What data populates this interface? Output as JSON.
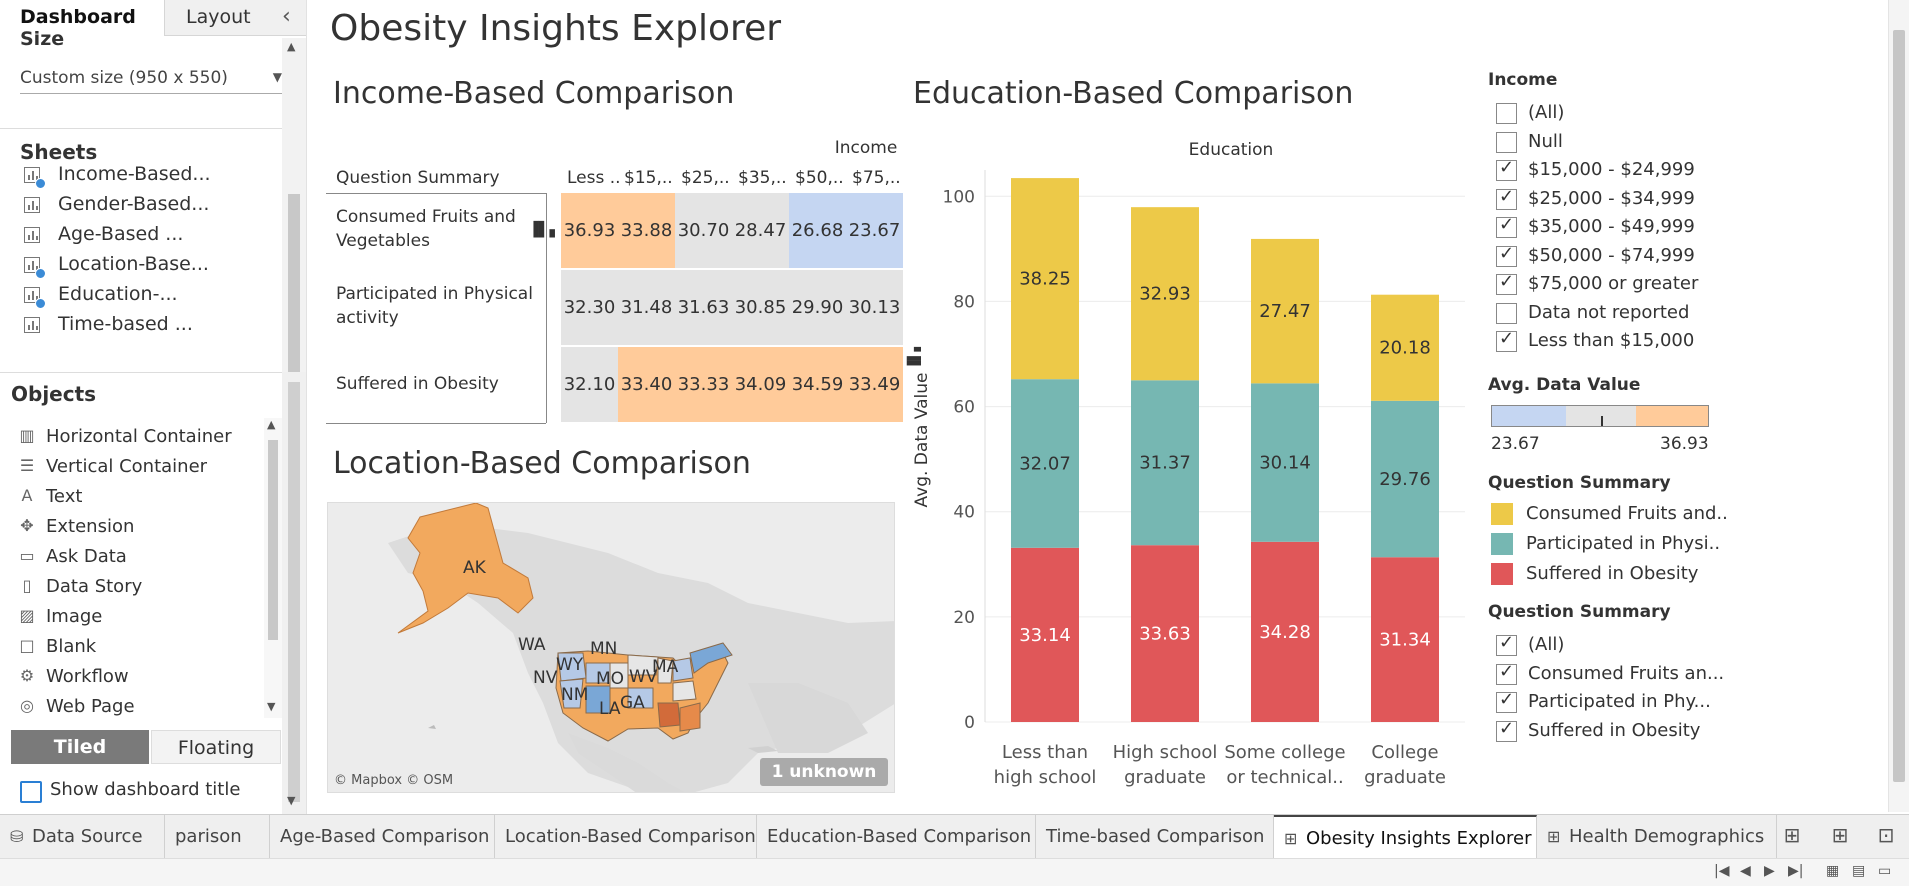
{
  "left_panel": {
    "tabs": {
      "dashboard": "Dashboard",
      "layout": "Layout"
    },
    "size": {
      "heading": "Size",
      "value": "Custom size (950 x 550)"
    },
    "sheets": {
      "heading": "Sheets",
      "items": [
        {
          "label": "Income-Based...",
          "used": true
        },
        {
          "label": "Gender-Based...",
          "used": false
        },
        {
          "label": "Age-Based ...",
          "used": false
        },
        {
          "label": "Location-Base...",
          "used": true
        },
        {
          "label": "Education-...",
          "used": true
        },
        {
          "label": "Time-based ...",
          "used": false
        }
      ]
    },
    "objects": {
      "heading": "Objects",
      "items": [
        {
          "label": "Horizontal Container",
          "icon": "horizontal-container-icon"
        },
        {
          "label": "Vertical Container",
          "icon": "vertical-container-icon"
        },
        {
          "label": "Text",
          "icon": "text-icon"
        },
        {
          "label": "Extension",
          "icon": "extension-icon"
        },
        {
          "label": "Ask Data",
          "icon": "ask-data-icon"
        },
        {
          "label": "Data Story",
          "icon": "data-story-icon"
        },
        {
          "label": "Image",
          "icon": "image-icon"
        },
        {
          "label": "Blank",
          "icon": "blank-icon"
        },
        {
          "label": "Workflow",
          "icon": "workflow-icon"
        },
        {
          "label": "Web Page",
          "icon": "web-page-icon"
        }
      ]
    },
    "tiled": "Tiled",
    "floating": "Floating",
    "show_title": "Show dashboard title"
  },
  "dashboard": {
    "title": "Obesity Insights Explorer",
    "income_block": {
      "title": "Income-Based Comparison",
      "column_header": "Income",
      "row_header": "Question Summary",
      "columns": [
        "Less ..",
        "$15,..",
        "$25,..",
        "$35,..",
        "$50,..",
        "$75,.."
      ],
      "rows": [
        {
          "label": "Consumed Fruits and Vegetables",
          "values": [
            "36.93",
            "33.88",
            "30.70",
            "28.47",
            "26.68",
            "23.67"
          ],
          "colors": [
            "#ffcb9a",
            "#ffcb9a",
            "#e4e4e4",
            "#e4e4e4",
            "#c5d6f2",
            "#c5d6f2"
          ]
        },
        {
          "label": "Participated in Physical activity",
          "values": [
            "32.30",
            "31.48",
            "31.63",
            "30.85",
            "29.90",
            "30.13"
          ],
          "colors": [
            "#e4e4e4",
            "#e4e4e4",
            "#e4e4e4",
            "#e4e4e4",
            "#e4e4e4",
            "#e4e4e4"
          ]
        },
        {
          "label": "Suffered in Obesity",
          "values": [
            "32.10",
            "33.40",
            "33.33",
            "34.09",
            "34.59",
            "33.49"
          ],
          "colors": [
            "#e4e4e4",
            "#ffcb9a",
            "#ffcb9a",
            "#ffcb9a",
            "#ffcb9a",
            "#ffcb9a"
          ]
        }
      ]
    },
    "location_block": {
      "title": "Location-Based Comparison",
      "state_labels": [
        "AK",
        "WA",
        "WY",
        "MN",
        "NV",
        "MO",
        "WV",
        "MA",
        "NM",
        "LA",
        "GA"
      ],
      "attribution": "© Mapbox © OSM",
      "unknown": "1 unknown"
    },
    "education_block": {
      "title": "Education-Based Comparison"
    }
  },
  "chart_data": {
    "type": "bar",
    "stacked": true,
    "title": "Education",
    "xlabel": "",
    "ylabel": "Avg. Data Value",
    "categories": [
      "Less than high school",
      "High school graduate",
      "Some college or technical..",
      "College graduate"
    ],
    "category_lines": [
      [
        "Less than",
        "high school"
      ],
      [
        "High school",
        "graduate"
      ],
      [
        "Some college",
        "or technical.."
      ],
      [
        "College",
        "graduate"
      ]
    ],
    "series": [
      {
        "name": "Suffered in Obesity",
        "values": [
          33.14,
          33.63,
          34.28,
          31.34
        ],
        "color": "#e05759"
      },
      {
        "name": "Participated in Physical activity",
        "values": [
          32.07,
          31.37,
          30.14,
          29.76
        ],
        "color": "#76b7b2"
      },
      {
        "name": "Consumed Fruits and Vegetables",
        "values": [
          38.25,
          32.93,
          27.47,
          20.18
        ],
        "color": "#edc948"
      }
    ],
    "yticks": [
      0,
      20,
      40,
      60,
      80,
      100
    ],
    "ylim": [
      0,
      105
    ],
    "grid": true
  },
  "legends": {
    "income_filter": {
      "title": "Income",
      "items": [
        {
          "label": "(All)",
          "checked": false
        },
        {
          "label": "Null",
          "checked": false
        },
        {
          "label": "$15,000 - $24,999",
          "checked": true
        },
        {
          "label": "$25,000 - $34,999",
          "checked": true
        },
        {
          "label": "$35,000 - $49,999",
          "checked": true
        },
        {
          "label": "$50,000 - $74,999",
          "checked": true
        },
        {
          "label": "$75,000 or greater",
          "checked": true
        },
        {
          "label": "Data not reported",
          "checked": false
        },
        {
          "label": "Less than $15,000",
          "checked": true
        }
      ]
    },
    "avg_value": {
      "title": "Avg. Data Value",
      "min": "23.67",
      "max": "36.93",
      "colors": [
        "#c5d6f2",
        "#e4e4e4",
        "#ffcb9a"
      ]
    },
    "color_legend": {
      "title": "Question Summary",
      "items": [
        {
          "label": "Consumed Fruits and..",
          "color": "#edc948"
        },
        {
          "label": "Participated in Physi..",
          "color": "#76b7b2"
        },
        {
          "label": "Suffered in Obesity",
          "color": "#e05759"
        }
      ]
    },
    "question_filter": {
      "title": "Question Summary",
      "items": [
        {
          "label": "(All)",
          "checked": true
        },
        {
          "label": "Consumed Fruits an...",
          "checked": true
        },
        {
          "label": "Participated in Phy...",
          "checked": true
        },
        {
          "label": "Suffered in Obesity",
          "checked": true
        }
      ]
    }
  },
  "bottom_tabs": [
    {
      "label": "Data Source",
      "icon": "data-source-icon",
      "active": false
    },
    {
      "label": "parison",
      "icon": "",
      "active": false
    },
    {
      "label": "Age-Based Comparison",
      "icon": "",
      "active": false
    },
    {
      "label": "Location-Based Comparison",
      "icon": "",
      "active": false
    },
    {
      "label": "Education-Based Comparison",
      "icon": "",
      "active": false
    },
    {
      "label": "Time-based Comparison",
      "icon": "",
      "active": false
    },
    {
      "label": "Obesity Insights Explorer",
      "icon": "dashboard-icon",
      "active": true
    },
    {
      "label": "Health Demographics",
      "icon": "dashboard-icon",
      "active": false
    }
  ]
}
